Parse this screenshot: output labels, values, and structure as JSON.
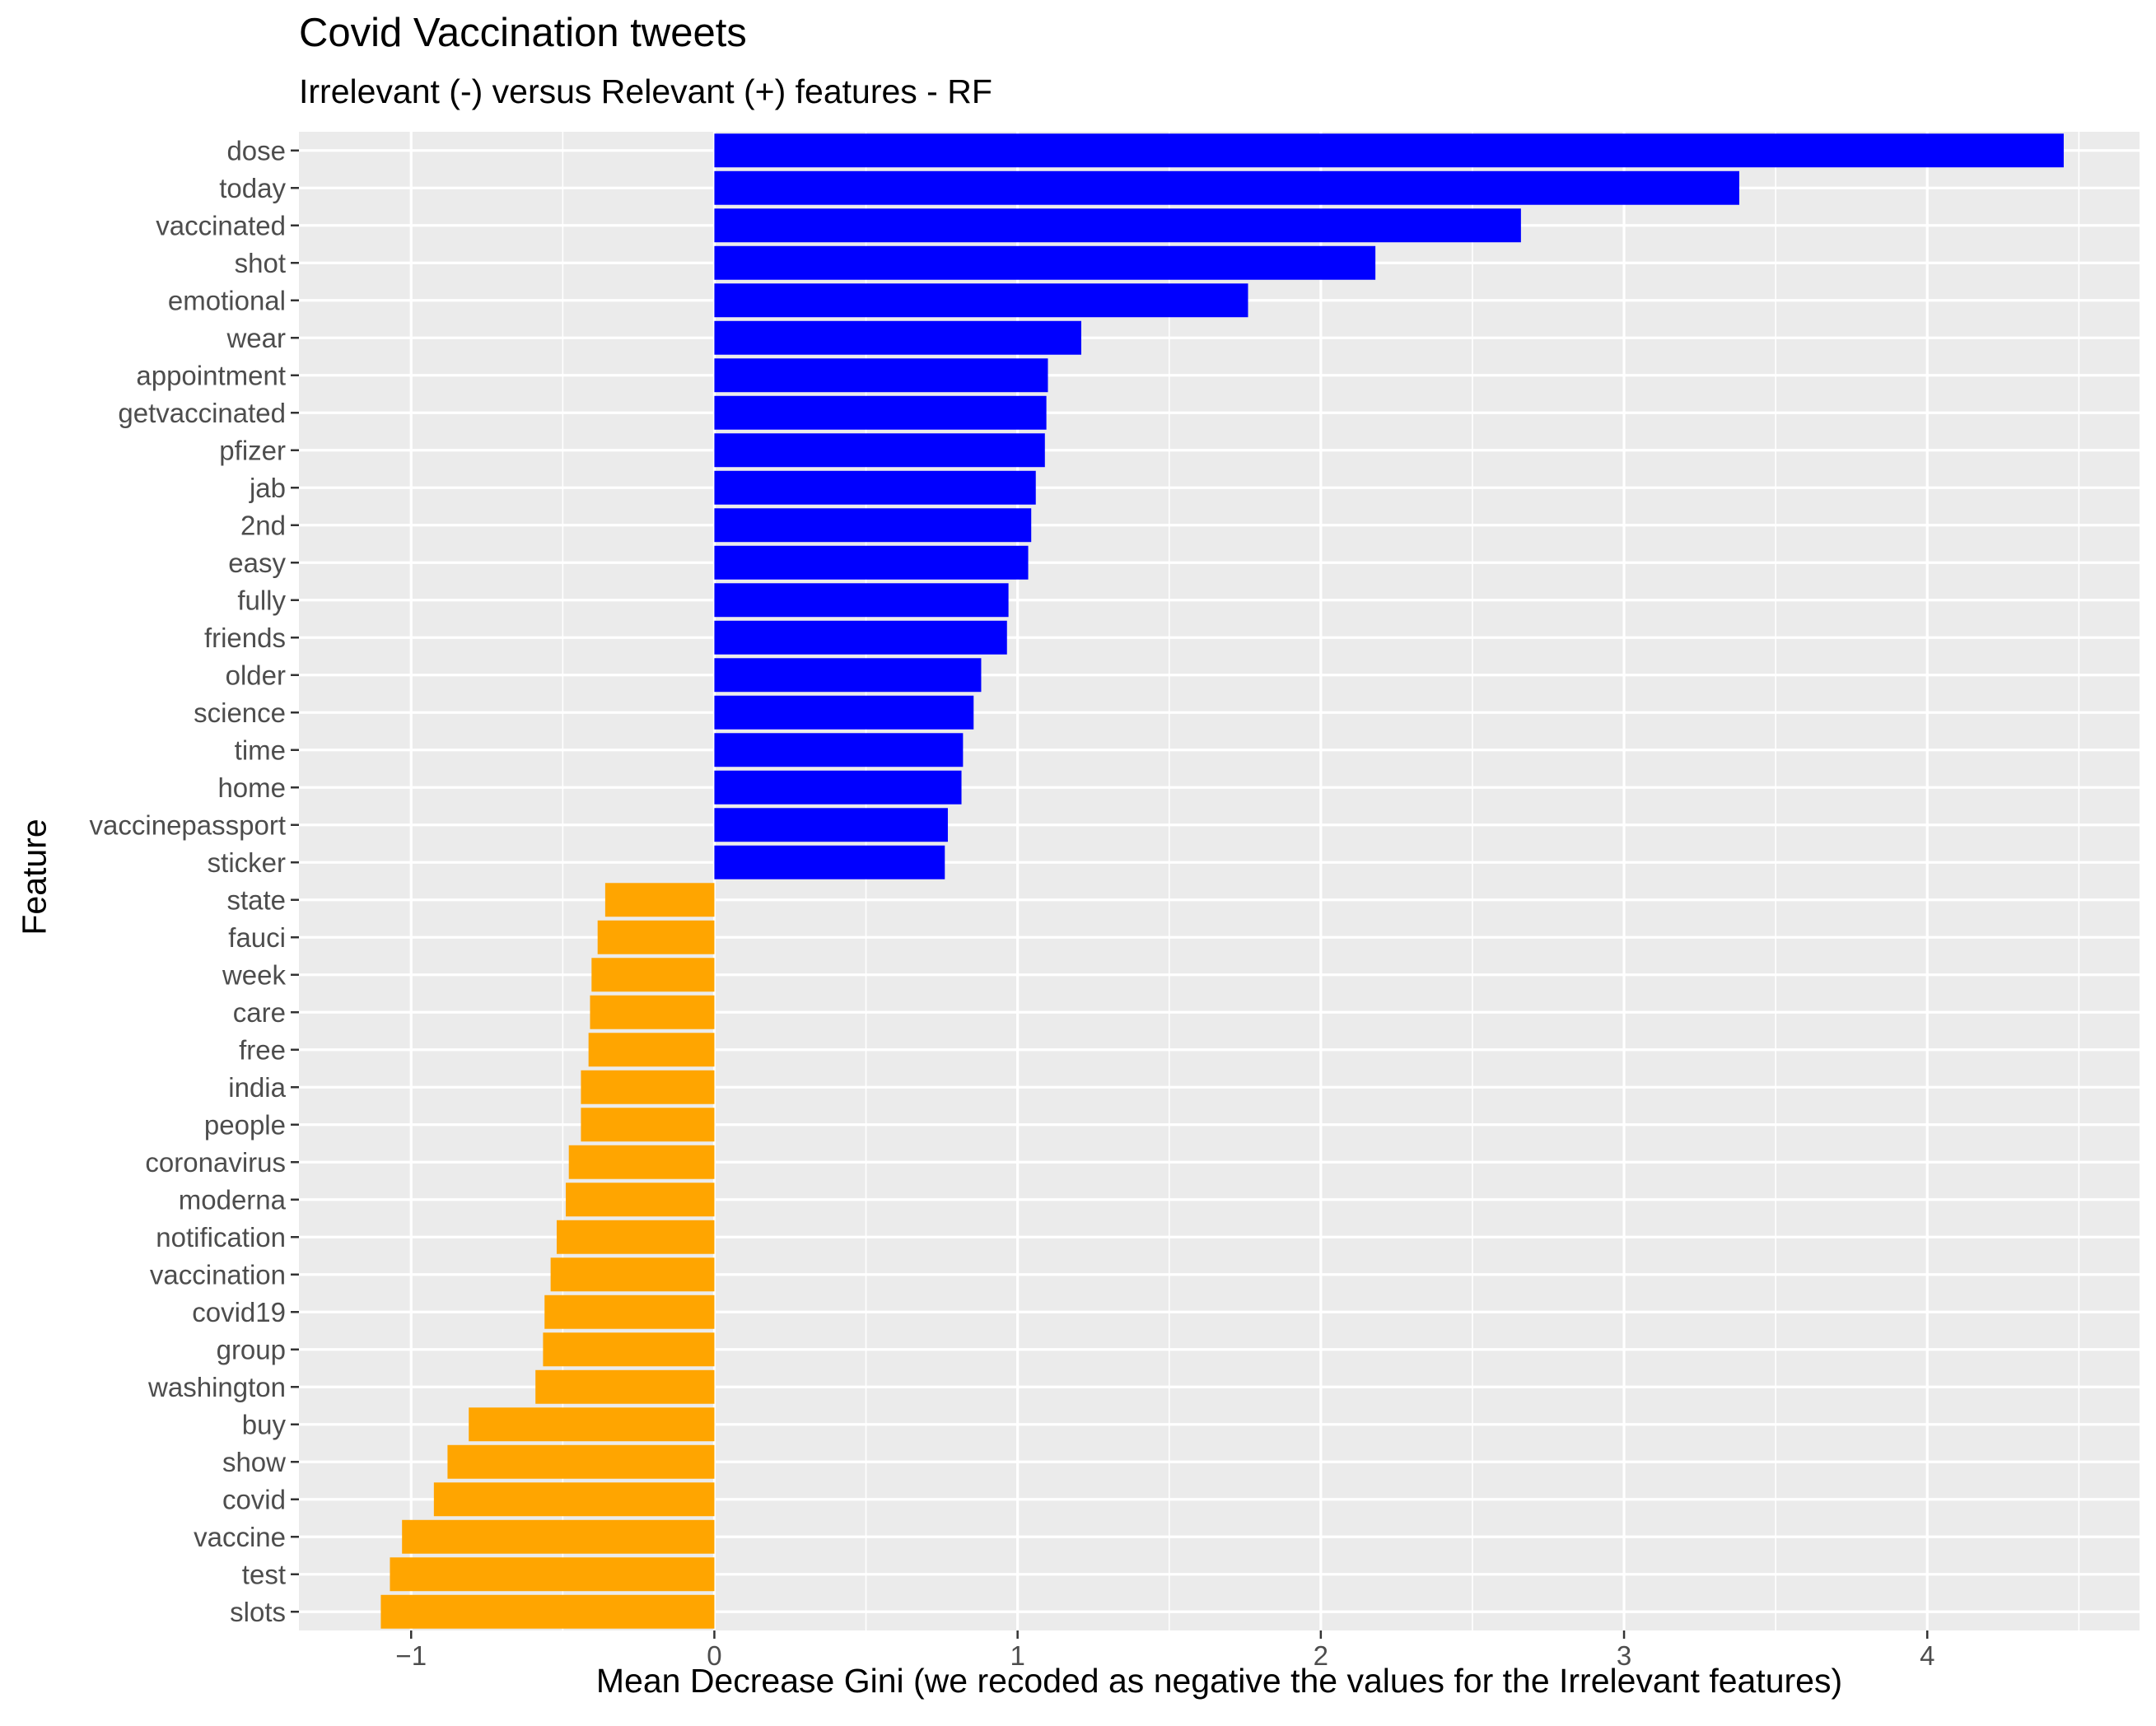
{
  "chart_data": {
    "type": "bar",
    "orientation": "horizontal",
    "title": "Covid Vaccination tweets",
    "subtitle": "Irrelevant (-) versus Relevant (+) features - RF",
    "xlabel": "Mean Decrease Gini (we recoded as negative the values for the Irrelevant features)",
    "ylabel": "Feature",
    "xlim": [
      -1.37,
      4.7
    ],
    "xticks": [
      -1,
      0,
      1,
      2,
      3,
      4
    ],
    "grid": true,
    "legend": "none",
    "colors": {
      "relevant": "#0000FF",
      "irrelevant": "#FFA500",
      "panel": "#EBEBEB",
      "grid": "#FFFFFF"
    },
    "categories": [
      "dose",
      "today",
      "vaccinated",
      "shot",
      "emotional",
      "wear",
      "appointment",
      "getvaccinated",
      "pfizer",
      "jab",
      "2nd",
      "easy",
      "fully",
      "friends",
      "older",
      "science",
      "time",
      "home",
      "vaccinepassport",
      "sticker",
      "state",
      "fauci",
      "week",
      "care",
      "free",
      "india",
      "people",
      "coronavirus",
      "moderna",
      "notification",
      "vaccination",
      "covid19",
      "group",
      "washington",
      "buy",
      "show",
      "covid",
      "vaccine",
      "test",
      "slots"
    ],
    "values": [
      4.45,
      3.38,
      2.66,
      2.18,
      1.76,
      1.21,
      1.1,
      1.095,
      1.09,
      1.06,
      1.045,
      1.035,
      0.97,
      0.965,
      0.88,
      0.855,
      0.82,
      0.815,
      0.77,
      0.76,
      -0.36,
      -0.385,
      -0.405,
      -0.41,
      -0.415,
      -0.44,
      -0.44,
      -0.48,
      -0.49,
      -0.52,
      -0.54,
      -0.56,
      -0.565,
      -0.59,
      -0.81,
      -0.88,
      -0.925,
      -1.03,
      -1.07,
      -1.1
    ]
  }
}
